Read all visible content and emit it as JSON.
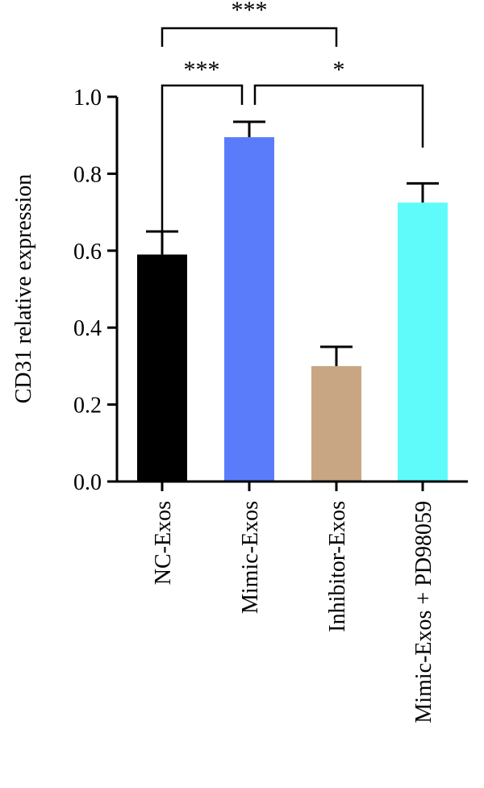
{
  "chart_data": {
    "type": "bar",
    "ylabel": "CD31 relative expression",
    "ylim": [
      0,
      1.0
    ],
    "yticks": [
      "0.0",
      "0.2",
      "0.4",
      "0.6",
      "0.8",
      "1.0"
    ],
    "categories": [
      "NC-Exos",
      "Mimic-Exos",
      "Inhibitor-Exos",
      "Mimic-Exos + PD98059"
    ],
    "values": [
      0.59,
      0.895,
      0.3,
      0.725
    ],
    "errors": [
      0.06,
      0.04,
      0.05,
      0.05
    ],
    "colors": [
      "#000000",
      "#5b7cfa",
      "#c9a683",
      "#5ffbfb"
    ],
    "significance": [
      {
        "from": 0,
        "to": 1,
        "label": "***"
      },
      {
        "from": 1,
        "to": 3,
        "label": "*"
      },
      {
        "from": 0,
        "to": 2,
        "label": "***"
      }
    ]
  }
}
